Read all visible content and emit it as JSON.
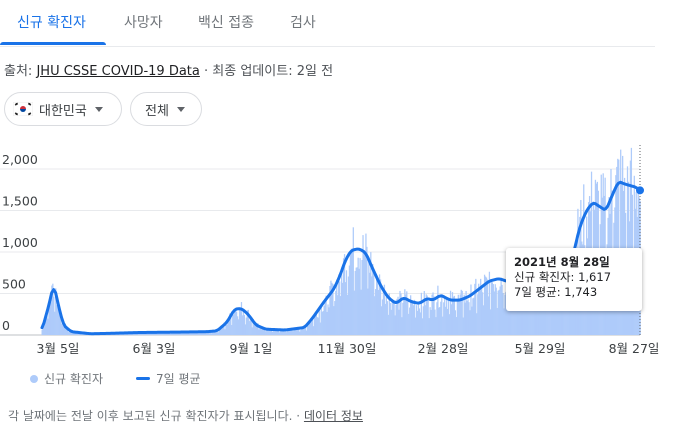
{
  "tabs": [
    {
      "label": "신규 확진자",
      "active": true
    },
    {
      "label": "사망자",
      "active": false
    },
    {
      "label": "백신 접종",
      "active": false
    },
    {
      "label": "검사",
      "active": false
    }
  ],
  "source": {
    "prefix": "출처:",
    "link": "JHU CSSE COVID-19 Data",
    "separator": "·",
    "update": "최종 업데이트: 2일 전"
  },
  "filters": {
    "country": "대한민국",
    "range": "전체"
  },
  "chart_data": {
    "type": "bar",
    "overlay": "line",
    "x_tick_labels": [
      "3월 5일",
      "6월 3일",
      "9월 1일",
      "11월 30일",
      "2월 28일",
      "5월 29일",
      "8월 27일"
    ],
    "y_tick_labels": [
      "0",
      "500",
      "1,000",
      "1,500",
      "2,000"
    ],
    "ylim": [
      0,
      2300
    ],
    "grid": true,
    "legend_position": "bottom-left",
    "colors": {
      "bars": "#aecbfa",
      "line": "#1a73e8",
      "grid": "#e8eaed"
    },
    "series": [
      {
        "name": "신규 확진자",
        "kind": "bar"
      },
      {
        "name": "7일 평균",
        "kind": "line",
        "keypoints": [
          [
            0,
            60
          ],
          [
            8,
            400
          ],
          [
            12,
            620
          ],
          [
            16,
            400
          ],
          [
            22,
            120
          ],
          [
            30,
            40
          ],
          [
            50,
            15
          ],
          [
            70,
            20
          ],
          [
            100,
            30
          ],
          [
            140,
            35
          ],
          [
            170,
            40
          ],
          [
            180,
            50
          ],
          [
            190,
            150
          ],
          [
            198,
            310
          ],
          [
            205,
            320
          ],
          [
            212,
            250
          ],
          [
            220,
            120
          ],
          [
            230,
            70
          ],
          [
            250,
            60
          ],
          [
            270,
            90
          ],
          [
            278,
            200
          ],
          [
            290,
            400
          ],
          [
            300,
            550
          ],
          [
            306,
            700
          ],
          [
            312,
            900
          ],
          [
            318,
            1020
          ],
          [
            326,
            1040
          ],
          [
            333,
            990
          ],
          [
            340,
            800
          ],
          [
            348,
            600
          ],
          [
            356,
            450
          ],
          [
            364,
            380
          ],
          [
            372,
            450
          ],
          [
            380,
            400
          ],
          [
            388,
            380
          ],
          [
            396,
            440
          ],
          [
            402,
            420
          ],
          [
            410,
            480
          ],
          [
            420,
            420
          ],
          [
            430,
            420
          ],
          [
            440,
            470
          ],
          [
            450,
            560
          ],
          [
            460,
            650
          ],
          [
            470,
            680
          ],
          [
            480,
            640
          ],
          [
            490,
            560
          ],
          [
            500,
            600
          ],
          [
            510,
            560
          ],
          [
            520,
            580
          ],
          [
            528,
            650
          ],
          [
            535,
            600
          ],
          [
            541,
            700
          ],
          [
            547,
            1000
          ],
          [
            553,
            1300
          ],
          [
            560,
            1500
          ],
          [
            567,
            1600
          ],
          [
            573,
            1550
          ],
          [
            580,
            1500
          ],
          [
            587,
            1700
          ],
          [
            593,
            1850
          ],
          [
            599,
            1820
          ],
          [
            605,
            1800
          ],
          [
            611,
            1780
          ],
          [
            615,
            1743
          ]
        ]
      }
    ]
  },
  "tooltip": {
    "date": "2021년 8월 28일",
    "new_cases": "신규 확진자: 1,617",
    "avg": "7일 평균: 1,743"
  },
  "legend": {
    "bar_label": "신규 확진자",
    "line_label": "7일 평균"
  },
  "footnote": {
    "text": "각 날짜에는 전날 이후 보고된 신규 확진자가 표시됩니다.",
    "separator": "·",
    "link": "데이터 정보"
  }
}
